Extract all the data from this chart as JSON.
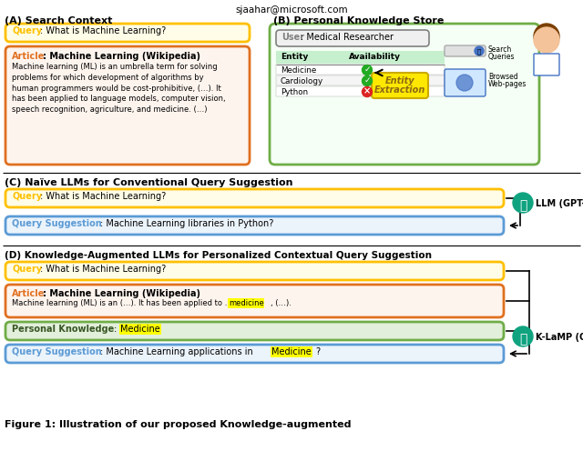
{
  "bg_color": "#ffffff",
  "email": "sjaahar@microsoft.com",
  "sec_A": "(A) Search Context",
  "sec_B": "(B) Personal Knowledge Store",
  "sec_C": "(C) Naïve LLMs for Conventional Query Suggestion",
  "sec_D": "(D) Knowledge-Augmented LLMs for Personalized Contextual Query Suggestion",
  "caption": "Figure 1: Illustration of our proposed Knowledge-augmented",
  "yellow_border": "#FFC000",
  "orange_border": "#E07020",
  "blue_border": "#5B9BD5",
  "green_border": "#70AD47",
  "gray_border": "#808080",
  "yellow_bg": "#FFFDE7",
  "orange_bg": "#FEF4EE",
  "blue_bg": "#EBF3FB",
  "green_bg": "#E2EFDA",
  "green_dark": "#375623",
  "highlight": "#FFFF00",
  "gpt_green": "#10A37F",
  "entity_yellow": "#FFE800",
  "entity_text": "#8B6914"
}
